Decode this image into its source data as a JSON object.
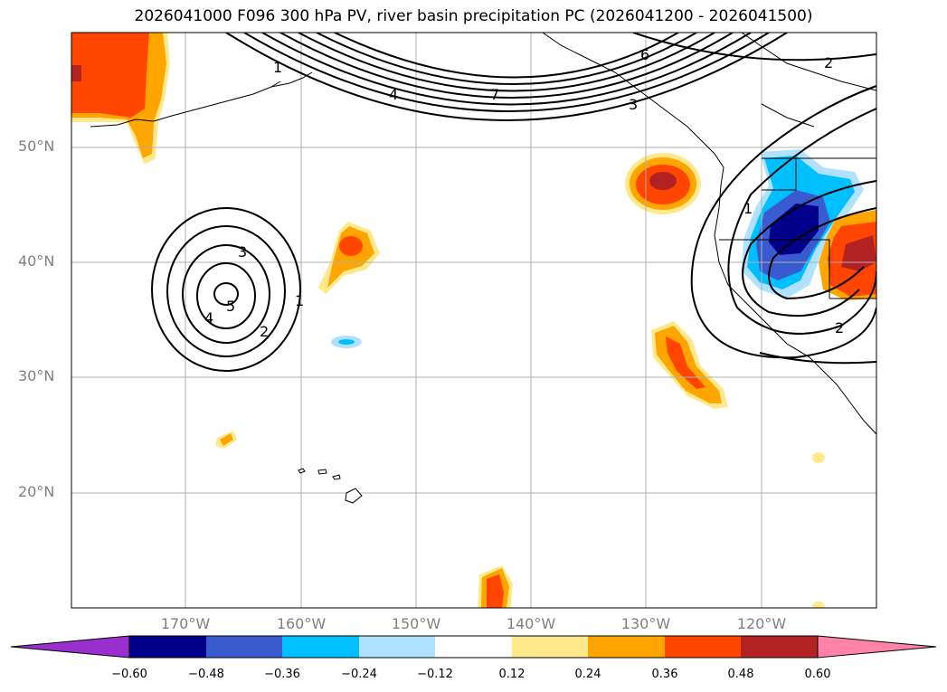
{
  "title": "2026041000 F096 300 hPa PV, river basin precipitation PC (2026041200 - 2026041500)",
  "lat_labels": [
    "50°N",
    "40°N",
    "30°N",
    "20°N"
  ],
  "lon_labels": [
    "170°W",
    "160°W",
    "150°W",
    "140°W",
    "130°W",
    "120°W"
  ],
  "contour_labels": [
    "1",
    "4",
    "7",
    "6",
    "2",
    "3",
    "3",
    "5",
    "4",
    "2",
    "1",
    "1",
    "2"
  ],
  "colorbar": {
    "colors": [
      "#9a2fd0",
      "#00008b",
      "#3a5bd0",
      "#00bfff",
      "#b0e2ff",
      "#ffffff",
      "#ffe98a",
      "#ffa500",
      "#ff4500",
      "#b22222",
      "#ff82a8"
    ],
    "ticks": [
      "−0.60",
      "−0.48",
      "−0.36",
      "−0.24",
      "−0.12",
      "0.12",
      "0.24",
      "0.36",
      "0.48",
      "0.60"
    ]
  },
  "chart_data": {
    "type": "map",
    "title": "2026041000 F096 300 hPa PV, river basin precipitation PC (2026041200 - 2026041500)",
    "lon_range": [
      -180,
      -110
    ],
    "lat_range": [
      10,
      60
    ],
    "contour_field": "300 hPa PV",
    "contour_levels": [
      1,
      2,
      3,
      4,
      5,
      6,
      7
    ],
    "fill_field": "river basin precipitation PC",
    "fill_levels": [
      -0.6,
      -0.48,
      -0.36,
      -0.24,
      -0.12,
      0.12,
      0.24,
      0.36,
      0.48,
      0.6
    ]
  }
}
